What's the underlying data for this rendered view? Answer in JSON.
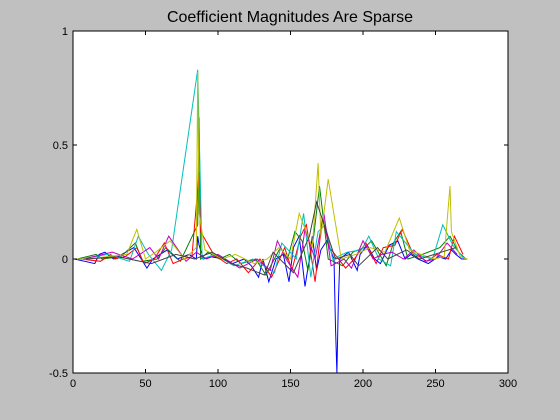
{
  "chart_data": {
    "type": "line",
    "title": "Coefficient Magnitudes Are Sparse",
    "xlabel": "",
    "ylabel": "",
    "xlim": [
      0,
      300
    ],
    "ylim": [
      -0.5,
      1
    ],
    "xticks": [
      0,
      50,
      100,
      150,
      200,
      250,
      300
    ],
    "yticks": [
      -0.5,
      0,
      0.5,
      1
    ],
    "xtick_labels": [
      "0",
      "50",
      "100",
      "150",
      "200",
      "250",
      "300"
    ],
    "ytick_labels": [
      "-0.5",
      "0",
      "0.5",
      "1"
    ],
    "grid": false,
    "legend": "none",
    "background": "#c0c0c0",
    "axes_background": "#ffffff",
    "colors": [
      "#0000ff",
      "#008000",
      "#ff0000",
      "#00bfbf",
      "#bf00bf",
      "#bfbf00",
      "#404040"
    ],
    "series": [
      {
        "color": "#0000ff",
        "x": [
          1,
          15,
          18,
          22,
          28,
          42,
          47,
          51,
          55,
          60,
          65,
          72,
          80,
          85,
          86,
          87,
          90,
          95,
          104,
          110,
          118,
          123,
          128,
          131,
          135,
          140,
          145,
          149,
          152,
          156,
          160,
          163,
          165,
          168,
          171,
          175,
          180,
          181,
          182,
          183,
          184,
          190,
          196,
          198,
          203,
          208,
          212,
          218,
          224,
          229,
          233,
          238,
          245,
          252,
          257,
          261,
          264,
          268,
          272
        ],
        "y": [
          0.0,
          -0.02,
          0.02,
          0.03,
          0.0,
          0.05,
          0.0,
          -0.04,
          0.0,
          0.02,
          0.04,
          0.0,
          0.02,
          0.0,
          0.1,
          0.06,
          0.0,
          0.01,
          0.0,
          -0.02,
          0.0,
          -0.03,
          -0.08,
          0.0,
          -0.1,
          0.0,
          0.02,
          -0.1,
          0.05,
          0.1,
          -0.12,
          0.0,
          0.1,
          -0.05,
          0.04,
          0.08,
          0.0,
          -0.3,
          -0.5,
          -0.2,
          0.0,
          0.03,
          -0.05,
          0.02,
          0.06,
          0.0,
          -0.02,
          0.06,
          0.08,
          0.0,
          0.02,
          0.0,
          -0.02,
          0.01,
          0.0,
          0.04,
          0.02,
          0.0,
          0.0
        ]
      },
      {
        "color": "#008000",
        "x": [
          3,
          16,
          20,
          33,
          43,
          48,
          58,
          64,
          74,
          86,
          87,
          88,
          93,
          101,
          108,
          116,
          126,
          133,
          143,
          148,
          153,
          158,
          162,
          166,
          170,
          176,
          186,
          193,
          201,
          206,
          216,
          221,
          226,
          231,
          241,
          253,
          260,
          266,
          271
        ],
        "y": [
          0.0,
          0.02,
          0.0,
          0.01,
          0.07,
          -0.01,
          0.0,
          0.05,
          -0.01,
          0.15,
          0.62,
          0.0,
          0.03,
          0.0,
          0.02,
          -0.02,
          0.0,
          -0.07,
          0.05,
          0.0,
          0.12,
          0.08,
          -0.05,
          0.1,
          0.32,
          0.0,
          -0.03,
          0.03,
          0.05,
          0.08,
          -0.03,
          0.07,
          0.12,
          0.0,
          0.02,
          0.05,
          0.1,
          0.03,
          0.0
        ]
      },
      {
        "color": "#ff0000",
        "x": [
          5,
          19,
          26,
          29,
          36,
          44,
          49,
          56,
          63,
          69,
          76,
          82,
          87,
          88,
          97,
          106,
          113,
          121,
          129,
          137,
          146,
          151,
          157,
          161,
          167,
          172,
          177,
          188,
          194,
          202,
          209,
          214,
          222,
          227,
          234,
          244,
          251,
          259,
          263,
          269
        ],
        "y": [
          0.0,
          -0.01,
          0.02,
          0.0,
          0.01,
          0.05,
          -0.02,
          0.0,
          0.07,
          -0.02,
          0.0,
          0.01,
          0.38,
          0.12,
          0.02,
          -0.02,
          0.0,
          -0.06,
          0.0,
          -0.08,
          0.05,
          -0.05,
          0.1,
          0.15,
          -0.1,
          0.18,
          0.05,
          -0.04,
          0.0,
          0.07,
          -0.02,
          0.05,
          0.06,
          0.13,
          0.03,
          -0.01,
          0.02,
          0.0,
          0.1,
          0.02
        ]
      },
      {
        "color": "#00bfbf",
        "x": [
          6,
          24,
          39,
          45,
          52,
          61,
          68,
          86,
          89,
          98,
          111,
          124,
          139,
          144,
          154,
          159,
          164,
          169,
          174,
          179,
          189,
          199,
          204,
          211,
          219,
          223,
          236,
          248,
          255,
          262,
          270
        ],
        "y": [
          0.0,
          0.02,
          -0.01,
          0.1,
          0.02,
          -0.05,
          0.04,
          0.83,
          0.0,
          0.02,
          -0.03,
          0.0,
          -0.06,
          0.07,
          0.0,
          0.2,
          -0.08,
          0.12,
          0.15,
          0.0,
          0.03,
          0.04,
          0.1,
          0.0,
          -0.03,
          0.12,
          0.02,
          0.0,
          0.15,
          0.06,
          0.0
        ]
      },
      {
        "color": "#bf00bf",
        "x": [
          7,
          27,
          41,
          46,
          53,
          59,
          66,
          78,
          85,
          92,
          100,
          115,
          127,
          136,
          141,
          147,
          155,
          160,
          167,
          173,
          178,
          187,
          192,
          200,
          207,
          213,
          220,
          228,
          235,
          243,
          250,
          258,
          265
        ],
        "y": [
          0.0,
          0.03,
          0.0,
          0.02,
          0.05,
          0.0,
          0.1,
          -0.01,
          0.03,
          0.0,
          0.02,
          -0.04,
          0.0,
          -0.05,
          0.08,
          0.0,
          -0.08,
          0.13,
          0.0,
          0.2,
          -0.03,
          0.0,
          -0.04,
          0.08,
          0.0,
          0.02,
          0.03,
          0.0,
          0.04,
          -0.01,
          0.0,
          0.07,
          0.02
        ]
      },
      {
        "color": "#bfbf00",
        "x": [
          0,
          10,
          23,
          37,
          44,
          50,
          57,
          67,
          77,
          85,
          86,
          87,
          91,
          103,
          112,
          125,
          134,
          142,
          150,
          156,
          165,
          169,
          171,
          176,
          185,
          195,
          205,
          215,
          225,
          232,
          240,
          249,
          256,
          260,
          261,
          267,
          272
        ],
        "y": [
          0.0,
          0.0,
          0.01,
          0.02,
          0.13,
          0.0,
          0.03,
          0.08,
          0.0,
          0.05,
          0.82,
          0.2,
          0.04,
          0.0,
          0.02,
          -0.02,
          0.0,
          0.05,
          0.0,
          0.2,
          0.05,
          0.42,
          0.1,
          0.35,
          0.0,
          0.02,
          0.05,
          0.03,
          0.18,
          0.04,
          0.02,
          0.0,
          0.01,
          0.32,
          0.12,
          0.01,
          0.0
        ]
      },
      {
        "color": "#404040",
        "x": [
          9,
          31,
          54,
          71,
          84,
          96,
          109,
          120,
          132,
          138,
          152,
          163,
          168,
          181,
          191,
          197,
          210,
          217,
          230,
          239,
          254,
          264
        ],
        "y": [
          0.0,
          0.01,
          -0.02,
          0.02,
          0.0,
          0.03,
          -0.02,
          -0.04,
          -0.07,
          0.03,
          -0.06,
          0.1,
          0.25,
          0.0,
          0.02,
          -0.03,
          0.05,
          0.0,
          0.04,
          0.0,
          0.03,
          0.05
        ]
      }
    ]
  }
}
